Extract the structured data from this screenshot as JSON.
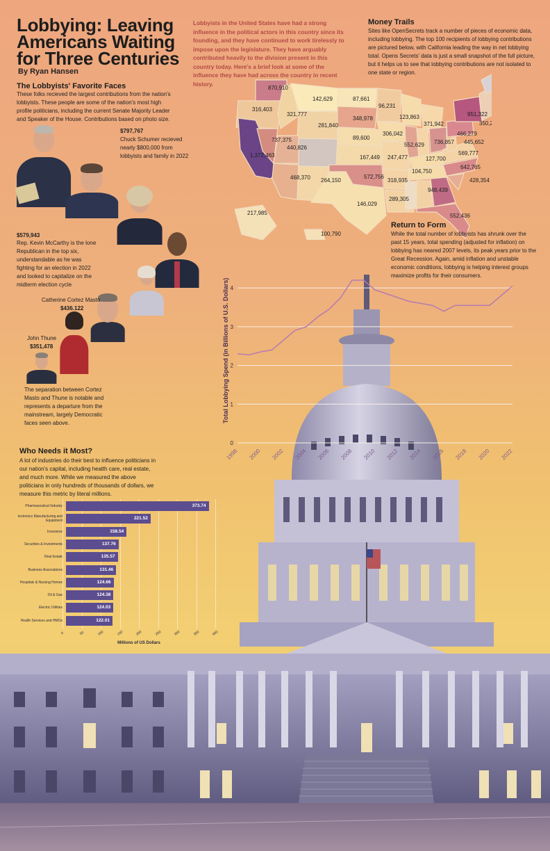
{
  "header": {
    "title": "Lobbying: Leaving Americans Waiting for Three Centuries",
    "byline": "By Ryan Hansen",
    "intro": "Lobbyists in the United States have had a strong influence in the political actors in this country since its founding, and they have continued to work tirelessly to impose upon the legislature. They have arguably contributed heavily to the division present in this country today. Here's a brief look at some of the influence they have had across the country in recent history."
  },
  "faces": {
    "heading": "The Lobbyists' Favorite Faces",
    "text": "These folks recieved the largest contributions from the nation's lobbyists. These people are some of the nation's most high profile politicians, including the current Senate Majority Leader and Speaker of the House. Contributions based on photo size.",
    "schumer_amount": "$797,767",
    "schumer_text": "Chuck Schumer recieved nearly $800,000 from lobbyists and family in 2022",
    "mccarthy_amount": "$579,943",
    "mccarthy_text": "Rep. Kevin McCarthy is the lone Republican in the top six, understandable as he was fighting for an election in 2022 and looked to capitalize on the midterm election cycle",
    "masto_name": "Catherine Cortez Masto",
    "masto_amount": "$436.122",
    "thune_name": "John Thune",
    "thune_amount": "$351,478",
    "closing_text": "The separation between Cortez Masto and Thune is notable and represents a departure from the mainstream, largely Democratic faces seen above."
  },
  "money": {
    "heading": "Money Trails",
    "text": "Sites like OpenSecrets track a number of pieces of economic data, including lobbying. The top 100 recipients of lobbying contributions are pictured below, with California leading the way in net lobbying total. Opens Secrets' data is just a small snapshot of the full picture, but it helps us to see that lobbying contributions are not isolated to one state or region."
  },
  "map_values": [
    "870,910",
    "142,629",
    "87,661",
    "316,403",
    "321,777",
    "96,231",
    "123,863",
    "951,322",
    "281,840",
    "348,978",
    "371,942",
    "350,270",
    "737,375",
    "306,042",
    "466,279",
    "440,826",
    "89,600",
    "552,629",
    "736,857",
    "445,652",
    "1,372,463",
    "167,449",
    "247,477",
    "127,700",
    "569,777",
    "104,750",
    "642,765",
    "468,370",
    "264,150",
    "572,756",
    "318,935",
    "428,354",
    "948,439",
    "289,305",
    "146,029",
    "217,985",
    "552,436",
    "100,790"
  ],
  "return_form": {
    "heading": "Return to Form",
    "text": "While the total number of lobbyists has shrunk over the past 15 years, total spending (adjusted for inflation) on lobbying has neared 2007 levels, its peak years prior to the Great Recession. Again, amid inflation and unstable economic conditions, lobbying is helping interest groups maximize profits for their consumers."
  },
  "needs": {
    "heading": "Who Needs it Most?",
    "text": "A lot of industries do their best to influence politicians in our nation's capital, including health care, real estate, and much more. While we measured the above politicians in only hundreds of thousands of dollars, we measure this metric by literal millions."
  },
  "chart_data": [
    {
      "type": "line",
      "title": "",
      "xlabel": "",
      "ylabel": "Total Lobbying Spend (in Billions of U.S. Dollars)",
      "x": [
        1998,
        1999,
        2000,
        2001,
        2002,
        2003,
        2004,
        2005,
        2006,
        2007,
        2008,
        2009,
        2010,
        2011,
        2012,
        2013,
        2014,
        2015,
        2016,
        2017,
        2018,
        2019,
        2020,
        2021,
        2022
      ],
      "y": [
        2.3,
        2.27,
        2.35,
        2.4,
        2.65,
        2.9,
        3.0,
        3.25,
        3.45,
        3.75,
        4.2,
        4.2,
        3.95,
        3.85,
        3.75,
        3.65,
        3.6,
        3.55,
        3.4,
        3.55,
        3.55,
        3.55,
        3.55,
        3.8,
        4.05
      ],
      "xticks": [
        "1998",
        "2000",
        "2002",
        "2004",
        "2006",
        "2008",
        "2010",
        "2012",
        "2014",
        "2016",
        "2018",
        "2020",
        "2022"
      ],
      "yticks": [
        "0",
        "1",
        "2",
        "3",
        "4"
      ],
      "xlim": [
        1998,
        2022
      ],
      "ylim": [
        0,
        4.2
      ],
      "grid": true,
      "color": "#b67ab0"
    },
    {
      "type": "bar",
      "orientation": "horizontal",
      "categories": [
        "Pharmaceutical Industry",
        "Electronics Manufacturing and Equipment",
        "Insurance",
        "Securities & Investments",
        "Real Estate",
        "Business Associations",
        "Hospitals & Nursing Homes",
        "Oil & Gas",
        "Electric Utilities",
        "Health Services and HMOs"
      ],
      "category_display": [
        "Pharmaceutical Industry",
        "lectronics Manufacturing and Equipment",
        "Insurance",
        "Securities & Investments",
        "Real Estate",
        "Business Associations",
        "Hospitals & Nursing Homes",
        "Oil & Gas",
        "Electric Utilities",
        "Health Services and HMOs"
      ],
      "values": [
        373.74,
        221.52,
        158.54,
        137.76,
        135.57,
        131.46,
        124.66,
        124.38,
        124.03,
        122.01
      ],
      "value_labels": [
        "373.74",
        "221.52",
        "158.54",
        "137.76",
        "135.57",
        "131.46",
        "124.66",
        "124.38",
        "124.03",
        "122.01"
      ],
      "xlabel": "Millions of US Dollars",
      "xticks": [
        "0",
        "50",
        "100",
        "150",
        "200",
        "250",
        "300",
        "350",
        "400"
      ],
      "xlim": [
        0,
        400
      ],
      "color": "#5b4d8f"
    }
  ]
}
